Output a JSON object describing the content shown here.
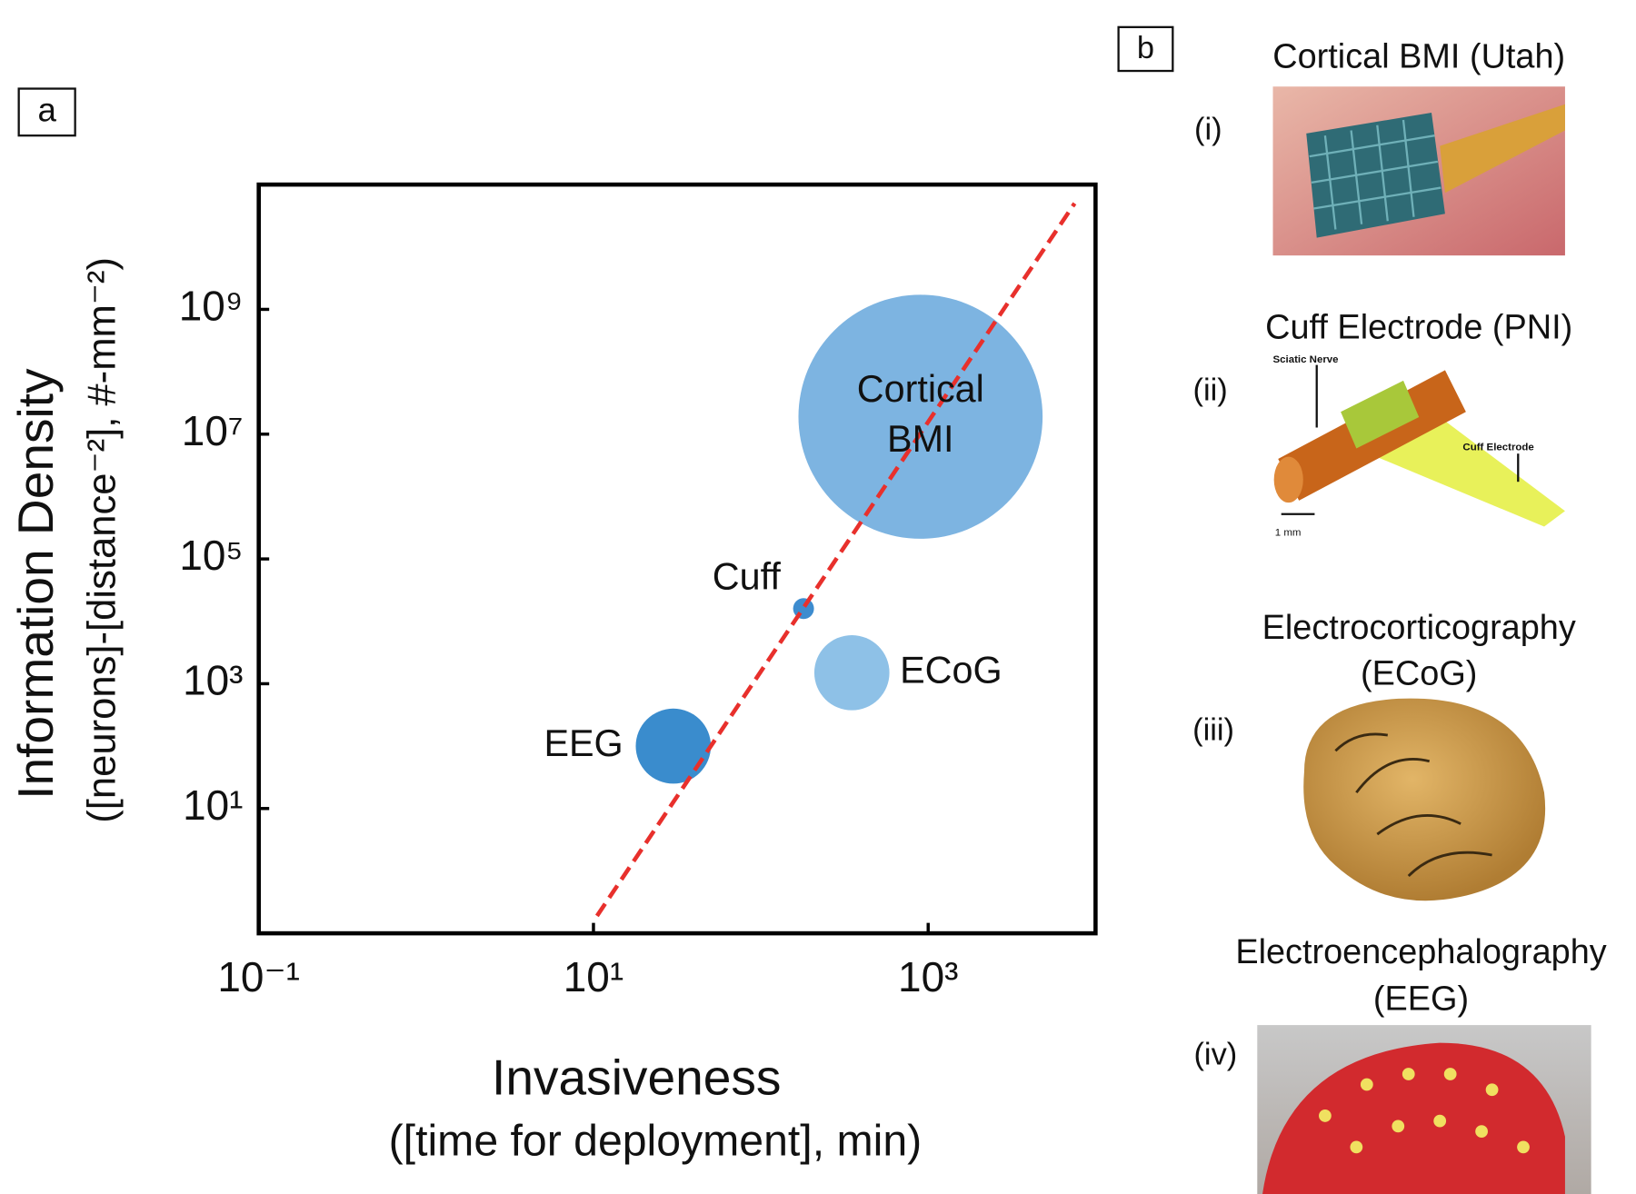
{
  "chart_data": {
    "type": "bubble",
    "panel_label": "a",
    "x_label": [
      "Invasiveness",
      "([time for deployment], min)"
    ],
    "y_label": [
      "Information Density",
      "([neurons]-[distance⁻²], #-mm⁻²)"
    ],
    "xscale": "log",
    "yscale": "log",
    "xlim": [
      0.1,
      10000
    ],
    "ylim": [
      0.1,
      100000000000
    ],
    "xticks": [
      {
        "value": 0.1,
        "label": "10⁻¹"
      },
      {
        "value": 10,
        "label": "10¹"
      },
      {
        "value": 1000,
        "label": "10³"
      }
    ],
    "yticks": [
      {
        "value": 10,
        "label": "10¹"
      },
      {
        "value": 1000,
        "label": "10³"
      },
      {
        "value": 100000,
        "label": "10⁵"
      },
      {
        "value": 10000000,
        "label": "10⁷"
      },
      {
        "value": 1000000000,
        "label": "10⁹"
      }
    ],
    "labels": [
      "Cortical BMI",
      "Cuff",
      "ECoG",
      "EEG"
    ],
    "x": [
      900,
      180,
      350,
      30
    ],
    "y": [
      19000000,
      16000,
      1500,
      100
    ],
    "sizes": [
      117,
      10,
      36,
      36
    ],
    "colors": [
      "#7db4e1",
      "#3d8ccf",
      "#8ec1e7",
      "#3a8ccd"
    ],
    "trend_line": {
      "x": [
        10.5,
        7500
      ],
      "y": [
        0.19,
        50000000000
      ],
      "color": "#e8302c"
    }
  },
  "panel_b": {
    "label": "b",
    "items": [
      {
        "numeral": "(i)",
        "title": [
          "Cortical BMI (Utah)"
        ]
      },
      {
        "numeral": "(ii)",
        "title": [
          "Cuff Electrode (PNI)"
        ],
        "annotations": [
          "Sciatic Nerve",
          "Cuff Electrode",
          "1 mm"
        ]
      },
      {
        "numeral": "(iii)",
        "title": [
          "Electrocorticography",
          "(ECoG)"
        ]
      },
      {
        "numeral": "(iv)",
        "title": [
          "Electroencephalography",
          "(EEG)"
        ]
      }
    ]
  }
}
